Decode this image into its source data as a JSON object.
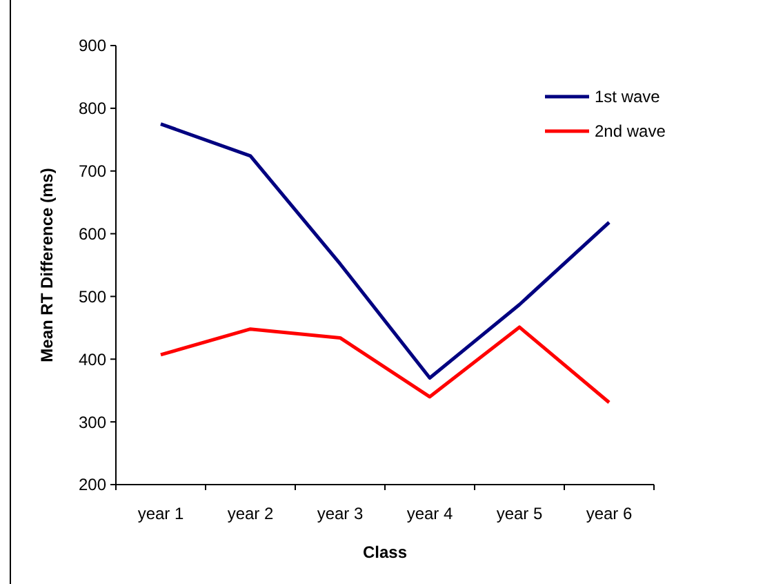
{
  "chart_data": {
    "type": "line",
    "xlabel": "Class",
    "ylabel": "Mean RT Difference (ms)",
    "categories": [
      "year 1",
      "year 2",
      "year 3",
      "year 4",
      "year 5",
      "year 6"
    ],
    "series": [
      {
        "name": "1st wave",
        "color": "#000080",
        "values": [
          775,
          724,
          552,
          370,
          487,
          618
        ]
      },
      {
        "name": "2nd wave",
        "color": "#ff0000",
        "values": [
          407,
          448,
          434,
          340,
          451,
          331
        ]
      }
    ],
    "ylim": [
      200,
      900
    ],
    "yticks": [
      200,
      300,
      400,
      500,
      600,
      700,
      800,
      900
    ],
    "grid": false,
    "legend": "top right",
    "marker": "none",
    "line_style": "solid"
  }
}
